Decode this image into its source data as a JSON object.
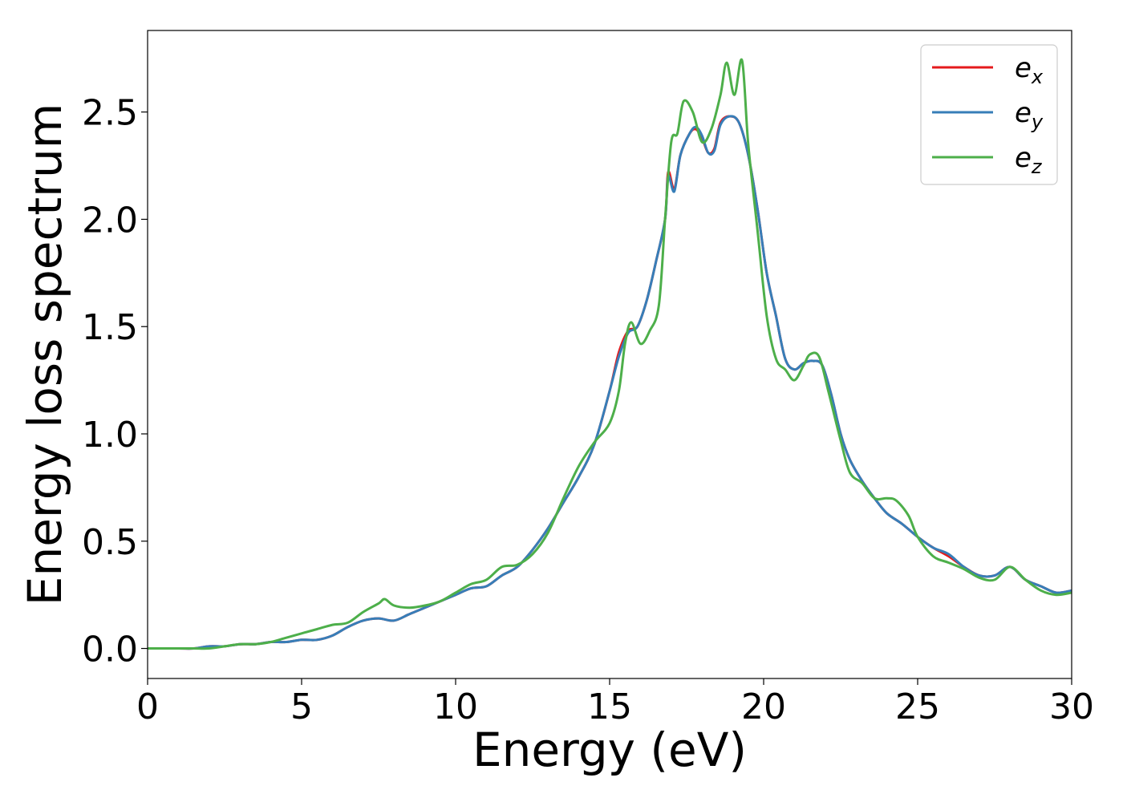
{
  "chart_data": {
    "type": "line",
    "xlabel": "Energy (eV)",
    "ylabel": "Energy loss spectrum",
    "xlim": [
      0,
      30
    ],
    "ylim": [
      -0.14,
      2.88
    ],
    "x_ticks": [
      0,
      5,
      10,
      15,
      20,
      25,
      30
    ],
    "x_tick_labels": [
      "0",
      "5",
      "10",
      "15",
      "20",
      "25",
      "30"
    ],
    "y_ticks": [
      0.0,
      0.5,
      1.0,
      1.5,
      2.0,
      2.5
    ],
    "y_tick_labels": [
      "0.0",
      "0.5",
      "1.0",
      "1.5",
      "2.0",
      "2.5"
    ],
    "grid": false,
    "legend_position": "top-right",
    "series": [
      {
        "name": "e_x",
        "legend_base": "e",
        "legend_sub": "x",
        "color": "#e41a1c",
        "points": [
          [
            0,
            0
          ],
          [
            1,
            0.0
          ],
          [
            1.5,
            0.0
          ],
          [
            2,
            0.01
          ],
          [
            2.5,
            0.01
          ],
          [
            3,
            0.02
          ],
          [
            3.5,
            0.02
          ],
          [
            4,
            0.03
          ],
          [
            4.5,
            0.03
          ],
          [
            5,
            0.04
          ],
          [
            5.5,
            0.04
          ],
          [
            6,
            0.06
          ],
          [
            6.5,
            0.1
          ],
          [
            7,
            0.13
          ],
          [
            7.5,
            0.14
          ],
          [
            8,
            0.13
          ],
          [
            8.5,
            0.16
          ],
          [
            9,
            0.19
          ],
          [
            9.5,
            0.22
          ],
          [
            10,
            0.25
          ],
          [
            10.5,
            0.28
          ],
          [
            11,
            0.29
          ],
          [
            11.5,
            0.34
          ],
          [
            12,
            0.38
          ],
          [
            12.5,
            0.46
          ],
          [
            13,
            0.56
          ],
          [
            13.5,
            0.68
          ],
          [
            14,
            0.8
          ],
          [
            14.5,
            0.95
          ],
          [
            15,
            1.2
          ],
          [
            15.3,
            1.38
          ],
          [
            15.6,
            1.48
          ],
          [
            15.9,
            1.5
          ],
          [
            16.2,
            1.62
          ],
          [
            16.5,
            1.8
          ],
          [
            16.8,
            2.0
          ],
          [
            16.9,
            2.22
          ],
          [
            17.1,
            2.14
          ],
          [
            17.3,
            2.3
          ],
          [
            17.6,
            2.4
          ],
          [
            17.8,
            2.42
          ],
          [
            18,
            2.38
          ],
          [
            18.2,
            2.31
          ],
          [
            18.4,
            2.33
          ],
          [
            18.6,
            2.45
          ],
          [
            18.9,
            2.48
          ],
          [
            19.2,
            2.45
          ],
          [
            19.5,
            2.3
          ],
          [
            19.8,
            2.05
          ],
          [
            20.1,
            1.75
          ],
          [
            20.4,
            1.55
          ],
          [
            20.7,
            1.35
          ],
          [
            21,
            1.3
          ],
          [
            21.3,
            1.33
          ],
          [
            21.6,
            1.34
          ],
          [
            21.9,
            1.32
          ],
          [
            22.2,
            1.18
          ],
          [
            22.5,
            1.0
          ],
          [
            22.8,
            0.88
          ],
          [
            23.2,
            0.78
          ],
          [
            23.6,
            0.7
          ],
          [
            24,
            0.63
          ],
          [
            24.5,
            0.58
          ],
          [
            25,
            0.52
          ],
          [
            25.5,
            0.47
          ],
          [
            26,
            0.43
          ],
          [
            26.5,
            0.38
          ],
          [
            27,
            0.34
          ],
          [
            27.5,
            0.34
          ],
          [
            28,
            0.38
          ],
          [
            28.5,
            0.32
          ],
          [
            29,
            0.29
          ],
          [
            29.5,
            0.26
          ],
          [
            30,
            0.27
          ]
        ]
      },
      {
        "name": "e_y",
        "legend_base": "e",
        "legend_sub": "y",
        "color": "#377eb8",
        "points": [
          [
            0,
            0
          ],
          [
            1,
            0.0
          ],
          [
            1.5,
            0.0
          ],
          [
            2,
            0.01
          ],
          [
            2.5,
            0.01
          ],
          [
            3,
            0.02
          ],
          [
            3.5,
            0.02
          ],
          [
            4,
            0.03
          ],
          [
            4.5,
            0.03
          ],
          [
            5,
            0.04
          ],
          [
            5.5,
            0.04
          ],
          [
            6,
            0.06
          ],
          [
            6.5,
            0.1
          ],
          [
            7,
            0.13
          ],
          [
            7.5,
            0.14
          ],
          [
            8,
            0.13
          ],
          [
            8.5,
            0.16
          ],
          [
            9,
            0.19
          ],
          [
            9.5,
            0.22
          ],
          [
            10,
            0.25
          ],
          [
            10.5,
            0.28
          ],
          [
            11,
            0.29
          ],
          [
            11.5,
            0.34
          ],
          [
            12,
            0.38
          ],
          [
            12.5,
            0.46
          ],
          [
            13,
            0.56
          ],
          [
            13.5,
            0.68
          ],
          [
            14,
            0.8
          ],
          [
            14.5,
            0.95
          ],
          [
            15,
            1.2
          ],
          [
            15.3,
            1.36
          ],
          [
            15.6,
            1.47
          ],
          [
            15.9,
            1.5
          ],
          [
            16.2,
            1.62
          ],
          [
            16.5,
            1.8
          ],
          [
            16.8,
            2.0
          ],
          [
            16.9,
            2.2
          ],
          [
            17.1,
            2.13
          ],
          [
            17.3,
            2.3
          ],
          [
            17.6,
            2.4
          ],
          [
            17.8,
            2.43
          ],
          [
            18,
            2.39
          ],
          [
            18.2,
            2.31
          ],
          [
            18.4,
            2.32
          ],
          [
            18.6,
            2.44
          ],
          [
            18.9,
            2.48
          ],
          [
            19.2,
            2.45
          ],
          [
            19.5,
            2.3
          ],
          [
            19.8,
            2.05
          ],
          [
            20.1,
            1.75
          ],
          [
            20.4,
            1.55
          ],
          [
            20.7,
            1.35
          ],
          [
            21,
            1.3
          ],
          [
            21.3,
            1.33
          ],
          [
            21.6,
            1.34
          ],
          [
            21.9,
            1.32
          ],
          [
            22.2,
            1.18
          ],
          [
            22.5,
            1.0
          ],
          [
            22.8,
            0.88
          ],
          [
            23.2,
            0.78
          ],
          [
            23.6,
            0.7
          ],
          [
            24,
            0.63
          ],
          [
            24.5,
            0.58
          ],
          [
            25,
            0.52
          ],
          [
            25.5,
            0.47
          ],
          [
            26,
            0.44
          ],
          [
            26.5,
            0.38
          ],
          [
            27,
            0.34
          ],
          [
            27.5,
            0.34
          ],
          [
            28,
            0.38
          ],
          [
            28.5,
            0.32
          ],
          [
            29,
            0.29
          ],
          [
            29.5,
            0.26
          ],
          [
            30,
            0.27
          ]
        ]
      },
      {
        "name": "e_z",
        "legend_base": "e",
        "legend_sub": "z",
        "color": "#4daf4a",
        "points": [
          [
            0,
            0
          ],
          [
            1,
            0.0
          ],
          [
            1.5,
            0.0
          ],
          [
            2,
            0.0
          ],
          [
            2.5,
            0.01
          ],
          [
            3,
            0.02
          ],
          [
            3.5,
            0.02
          ],
          [
            4,
            0.03
          ],
          [
            4.5,
            0.05
          ],
          [
            5,
            0.07
          ],
          [
            5.5,
            0.09
          ],
          [
            6,
            0.11
          ],
          [
            6.5,
            0.12
          ],
          [
            7,
            0.17
          ],
          [
            7.5,
            0.21
          ],
          [
            7.7,
            0.23
          ],
          [
            8,
            0.2
          ],
          [
            8.5,
            0.19
          ],
          [
            9,
            0.2
          ],
          [
            9.5,
            0.22
          ],
          [
            10,
            0.26
          ],
          [
            10.5,
            0.3
          ],
          [
            11,
            0.32
          ],
          [
            11.5,
            0.38
          ],
          [
            12,
            0.39
          ],
          [
            12.5,
            0.44
          ],
          [
            13,
            0.54
          ],
          [
            13.5,
            0.7
          ],
          [
            14,
            0.85
          ],
          [
            14.5,
            0.96
          ],
          [
            15,
            1.05
          ],
          [
            15.3,
            1.2
          ],
          [
            15.5,
            1.42
          ],
          [
            15.7,
            1.52
          ],
          [
            16,
            1.42
          ],
          [
            16.3,
            1.48
          ],
          [
            16.6,
            1.6
          ],
          [
            16.8,
            2.0
          ],
          [
            17,
            2.36
          ],
          [
            17.2,
            2.4
          ],
          [
            17.4,
            2.55
          ],
          [
            17.7,
            2.5
          ],
          [
            18,
            2.36
          ],
          [
            18.3,
            2.42
          ],
          [
            18.6,
            2.58
          ],
          [
            18.8,
            2.73
          ],
          [
            19.05,
            2.58
          ],
          [
            19.3,
            2.74
          ],
          [
            19.5,
            2.35
          ],
          [
            19.8,
            1.95
          ],
          [
            20.1,
            1.55
          ],
          [
            20.4,
            1.35
          ],
          [
            20.7,
            1.3
          ],
          [
            21,
            1.25
          ],
          [
            21.3,
            1.32
          ],
          [
            21.5,
            1.37
          ],
          [
            21.8,
            1.36
          ],
          [
            22.1,
            1.2
          ],
          [
            22.5,
            0.97
          ],
          [
            22.8,
            0.82
          ],
          [
            23.2,
            0.77
          ],
          [
            23.6,
            0.7
          ],
          [
            24,
            0.7
          ],
          [
            24.3,
            0.69
          ],
          [
            24.7,
            0.62
          ],
          [
            25,
            0.52
          ],
          [
            25.5,
            0.43
          ],
          [
            26,
            0.4
          ],
          [
            26.5,
            0.37
          ],
          [
            27,
            0.33
          ],
          [
            27.5,
            0.32
          ],
          [
            28,
            0.38
          ],
          [
            28.5,
            0.32
          ],
          [
            29,
            0.27
          ],
          [
            29.5,
            0.25
          ],
          [
            30,
            0.26
          ]
        ]
      }
    ]
  }
}
